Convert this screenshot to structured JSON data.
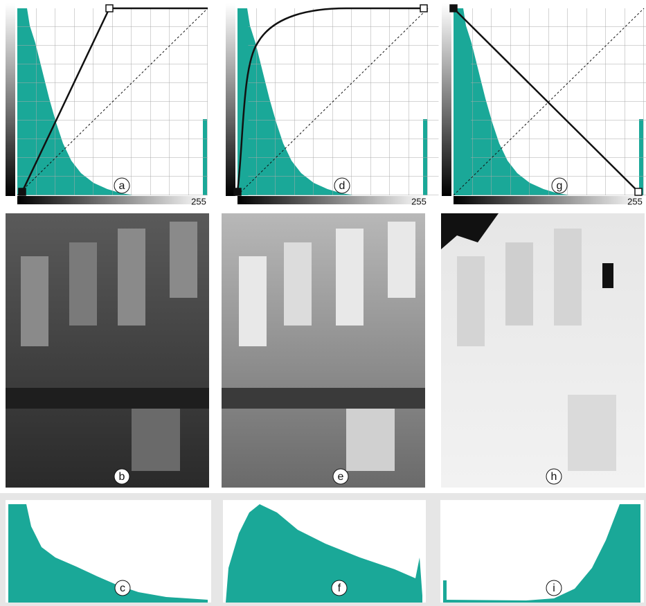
{
  "curves": [
    {
      "label": "a",
      "max_label": "255"
    },
    {
      "label": "d",
      "max_label": "255"
    },
    {
      "label": "g",
      "max_label": "255"
    }
  ],
  "images": [
    {
      "label": "b"
    },
    {
      "label": "e"
    },
    {
      "label": "h"
    }
  ],
  "histograms": [
    {
      "label": "c"
    },
    {
      "label": "f"
    },
    {
      "label": "i"
    }
  ]
}
